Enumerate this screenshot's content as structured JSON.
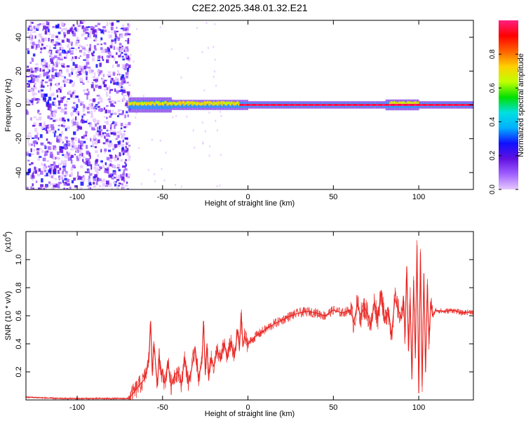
{
  "title": "C2E2.2025.348.01.32.E21",
  "chart_data": [
    {
      "type": "heatmap",
      "name": "spectrogram",
      "title": "C2E2.2025.348.01.32.E21",
      "xlabel": "Height of straight line (km)",
      "ylabel": "Frequency (Hz)",
      "xlim": [
        -130,
        132
      ],
      "ylim": [
        -50,
        50
      ],
      "xticks": [
        -100,
        -50,
        0,
        50,
        100
      ],
      "xtick_labels": [
        "-100",
        "-50",
        "0",
        "50",
        "100"
      ],
      "yticks": [
        -40,
        -20,
        0,
        20,
        40
      ],
      "ytick_labels": [
        "-40",
        "-20",
        "0",
        "20",
        "40"
      ],
      "noise_region_x": [
        -130,
        -70
      ],
      "signal_line_frequency": 0,
      "colorbar": {
        "label": "Normalized spectral amplitude",
        "range": [
          0,
          1
        ],
        "ticks": [
          0.0,
          0.2,
          0.4,
          0.6,
          0.8
        ],
        "tick_labels": [
          "0.0",
          "0.2",
          "0.4",
          "0.6",
          "0.8"
        ],
        "colors": [
          "#e6c8ff",
          "#a060ff",
          "#6010e0",
          "#1010ff",
          "#00b0ff",
          "#00e0e0",
          "#00e000",
          "#c0ff00",
          "#ffd000",
          "#ff6000",
          "#ff0000",
          "#ff2080"
        ]
      }
    },
    {
      "type": "line",
      "name": "snr",
      "xlabel": "Height of straight line (km)",
      "ylabel": "SNR (10 * v/v)",
      "y_multiplier": "(x10",
      "y_multiplier_exp": "4",
      "y_multiplier_close": ")",
      "xlim": [
        -130,
        132
      ],
      "ylim": [
        0,
        1.2
      ],
      "xticks": [
        -100,
        -50,
        0,
        50,
        100
      ],
      "xtick_labels": [
        "-100",
        "-50",
        "0",
        "50",
        "100"
      ],
      "yticks": [
        0.2,
        0.4,
        0.6,
        0.8,
        1.0
      ],
      "ytick_labels": [
        "0.2",
        "0.4",
        "0.6",
        "0.8",
        "1.0"
      ],
      "line_color": "#e8201c",
      "series": [
        {
          "name": "SNR",
          "x": [
            -130,
            -110,
            -90,
            -75,
            -70,
            -67,
            -64,
            -61,
            -59,
            -58,
            -57,
            -56,
            -55,
            -54,
            -53,
            -52,
            -51,
            -50,
            -49,
            -48,
            -47,
            -45,
            -43,
            -41,
            -39,
            -37,
            -35,
            -33,
            -31,
            -29,
            -27,
            -26,
            -25,
            -24,
            -23,
            -22,
            -20,
            -18,
            -16,
            -14,
            -12,
            -10,
            -8,
            -6,
            -5,
            -4,
            -3,
            -2,
            0,
            5,
            10,
            15,
            20,
            25,
            30,
            35,
            40,
            45,
            50,
            55,
            60,
            62,
            64,
            66,
            68,
            70,
            72,
            74,
            76,
            78,
            80,
            82,
            84,
            86,
            88,
            90,
            91,
            92,
            93,
            94,
            95,
            96,
            97,
            98,
            99,
            100,
            101,
            102,
            103,
            104,
            105,
            106,
            107,
            108,
            110,
            115,
            120,
            125,
            132
          ],
          "y": [
            0.02,
            0.01,
            0.01,
            0.01,
            0.01,
            0.05,
            0.1,
            0.14,
            0.22,
            0.3,
            0.56,
            0.2,
            0.4,
            0.24,
            0.1,
            0.32,
            0.18,
            0.22,
            0.12,
            0.16,
            0.28,
            0.1,
            0.18,
            0.2,
            0.12,
            0.3,
            0.12,
            0.22,
            0.38,
            0.16,
            0.26,
            0.56,
            0.18,
            0.4,
            0.14,
            0.3,
            0.24,
            0.36,
            0.28,
            0.4,
            0.3,
            0.42,
            0.3,
            0.5,
            0.36,
            0.62,
            0.38,
            0.45,
            0.4,
            0.46,
            0.5,
            0.54,
            0.57,
            0.6,
            0.62,
            0.63,
            0.62,
            0.6,
            0.64,
            0.62,
            0.64,
            0.55,
            0.68,
            0.6,
            0.66,
            0.62,
            0.52,
            0.7,
            0.58,
            0.78,
            0.55,
            0.66,
            0.46,
            0.72,
            0.64,
            0.58,
            0.74,
            0.45,
            0.95,
            0.35,
            0.72,
            0.15,
            0.85,
            0.3,
            1.1,
            0.05,
            1.05,
            0.1,
            0.9,
            0.2,
            0.82,
            0.4,
            0.7,
            0.6,
            0.64,
            0.63,
            0.64,
            0.62,
            0.63
          ]
        }
      ]
    }
  ]
}
